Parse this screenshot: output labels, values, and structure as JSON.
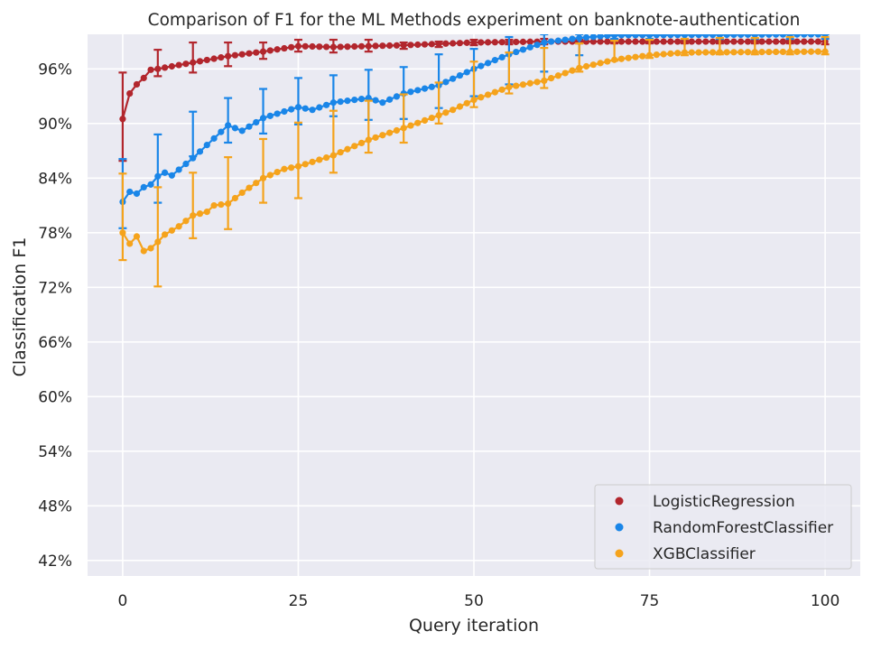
{
  "chart_data": {
    "type": "line",
    "title": "Comparison of F1 for the ML Methods experiment on banknote-authentication",
    "xlabel": "Query iteration",
    "ylabel": "Classification F1",
    "xlim": [
      -5,
      105
    ],
    "ylim": [
      40.3,
      99.8
    ],
    "xticks": [
      0,
      25,
      50,
      75,
      100
    ],
    "xtick_labels": [
      "0",
      "25",
      "50",
      "75",
      "100"
    ],
    "yticks": [
      42,
      48,
      54,
      60,
      66,
      72,
      78,
      84,
      90,
      96
    ],
    "ytick_labels": [
      "42%",
      "48%",
      "54%",
      "60%",
      "66%",
      "72%",
      "78%",
      "84%",
      "90%",
      "96%"
    ],
    "grid": true,
    "legend_position": "bottom-right",
    "error_bar_every": 5,
    "series": [
      {
        "name": "LogisticRegression",
        "color": "#b2262d",
        "knots": [
          [
            0,
            90.5
          ],
          [
            1,
            93.3
          ],
          [
            2,
            94.3
          ],
          [
            3,
            95.0
          ],
          [
            4,
            95.9
          ],
          [
            5,
            96.0
          ],
          [
            10,
            96.7
          ],
          [
            15,
            97.4
          ],
          [
            20,
            97.9
          ],
          [
            25,
            98.5
          ],
          [
            30,
            98.4
          ],
          [
            40,
            98.6
          ],
          [
            50,
            98.9
          ],
          [
            60,
            99.0
          ],
          [
            100,
            99.0
          ]
        ],
        "error_bars": [
          [
            0,
            85.9,
            95.6
          ],
          [
            5,
            95.2,
            98.1
          ],
          [
            10,
            95.6,
            98.9
          ],
          [
            15,
            96.3,
            98.9
          ],
          [
            20,
            97.1,
            98.9
          ],
          [
            25,
            97.9,
            99.2
          ],
          [
            30,
            97.8,
            99.2
          ],
          [
            35,
            97.9,
            99.2
          ],
          [
            40,
            98.2,
            98.9
          ],
          [
            45,
            98.4,
            99.0
          ],
          [
            50,
            98.6,
            99.2
          ],
          [
            55,
            98.7,
            99.2
          ],
          [
            60,
            98.7,
            99.3
          ],
          [
            65,
            98.8,
            99.2
          ],
          [
            70,
            98.8,
            99.2
          ],
          [
            75,
            98.8,
            99.2
          ],
          [
            80,
            98.8,
            99.2
          ],
          [
            85,
            98.8,
            99.2
          ],
          [
            90,
            98.8,
            99.2
          ],
          [
            95,
            98.8,
            99.2
          ],
          [
            100,
            98.7,
            99.3
          ]
        ]
      },
      {
        "name": "RandomForestClassifier",
        "color": "#1a86e8",
        "knots": [
          [
            0,
            81.4
          ],
          [
            1,
            82.5
          ],
          [
            2,
            82.3
          ],
          [
            3,
            83.0
          ],
          [
            4,
            83.3
          ],
          [
            5,
            84.2
          ],
          [
            6,
            84.6
          ],
          [
            7,
            84.3
          ],
          [
            10,
            86.2
          ],
          [
            15,
            89.8
          ],
          [
            17,
            89.2
          ],
          [
            20,
            90.6
          ],
          [
            25,
            91.8
          ],
          [
            27,
            91.5
          ],
          [
            30,
            92.3
          ],
          [
            35,
            92.8
          ],
          [
            37,
            92.3
          ],
          [
            40,
            93.3
          ],
          [
            45,
            94.2
          ],
          [
            50,
            96.0
          ],
          [
            55,
            97.6
          ],
          [
            60,
            98.9
          ],
          [
            65,
            99.4
          ],
          [
            70,
            99.7
          ],
          [
            100,
            99.8
          ]
        ],
        "error_bars": [
          [
            0,
            78.5,
            86.1
          ],
          [
            5,
            81.3,
            88.8
          ],
          [
            10,
            86.4,
            91.3
          ],
          [
            15,
            87.9,
            92.8
          ],
          [
            20,
            88.9,
            93.8
          ],
          [
            25,
            89.9,
            95.0
          ],
          [
            30,
            90.8,
            95.3
          ],
          [
            35,
            90.4,
            95.9
          ],
          [
            40,
            90.5,
            96.2
          ],
          [
            45,
            91.7,
            97.6
          ],
          [
            50,
            93.0,
            98.2
          ],
          [
            55,
            94.3,
            99.5
          ],
          [
            60,
            95.7,
            99.8
          ],
          [
            65,
            97.5,
            99.8
          ],
          [
            70,
            99.3,
            99.8
          ],
          [
            75,
            99.3,
            99.8
          ],
          [
            80,
            99.3,
            99.8
          ],
          [
            85,
            99.3,
            99.8
          ],
          [
            90,
            99.3,
            99.8
          ],
          [
            95,
            99.3,
            99.8
          ],
          [
            100,
            99.3,
            99.8
          ]
        ]
      },
      {
        "name": "XGBClassifier",
        "color": "#f5a31c",
        "knots": [
          [
            0,
            78.0
          ],
          [
            1,
            76.8
          ],
          [
            2,
            77.6
          ],
          [
            3,
            76.0
          ],
          [
            4,
            76.3
          ],
          [
            5,
            77.0
          ],
          [
            6,
            77.8
          ],
          [
            8,
            78.7
          ],
          [
            10,
            79.9
          ],
          [
            12,
            80.3
          ],
          [
            13,
            81.0
          ],
          [
            15,
            81.2
          ],
          [
            17,
            82.4
          ],
          [
            20,
            84.0
          ],
          [
            23,
            85.0
          ],
          [
            25,
            85.3
          ],
          [
            30,
            86.5
          ],
          [
            35,
            88.2
          ],
          [
            40,
            89.5
          ],
          [
            45,
            90.9
          ],
          [
            47,
            91.5
          ],
          [
            50,
            92.6
          ],
          [
            55,
            94.0
          ],
          [
            60,
            94.7
          ],
          [
            65,
            96.1
          ],
          [
            70,
            97.0
          ],
          [
            75,
            97.5
          ],
          [
            80,
            97.8
          ],
          [
            100,
            97.9
          ]
        ],
        "error_bars": [
          [
            0,
            75.0,
            84.5
          ],
          [
            5,
            72.1,
            83.0
          ],
          [
            10,
            77.4,
            84.6
          ],
          [
            15,
            78.4,
            86.3
          ],
          [
            20,
            81.3,
            88.3
          ],
          [
            25,
            81.8,
            90.1
          ],
          [
            30,
            84.6,
            91.4
          ],
          [
            35,
            86.8,
            92.5
          ],
          [
            40,
            87.9,
            93.2
          ],
          [
            45,
            90.0,
            94.5
          ],
          [
            50,
            91.8,
            96.8
          ],
          [
            55,
            93.3,
            97.8
          ],
          [
            60,
            93.9,
            98.3
          ],
          [
            65,
            95.7,
            98.8
          ],
          [
            70,
            96.9,
            99.1
          ],
          [
            75,
            97.2,
            99.2
          ],
          [
            80,
            97.5,
            99.3
          ],
          [
            85,
            97.6,
            99.4
          ],
          [
            90,
            97.6,
            99.4
          ],
          [
            95,
            97.6,
            99.5
          ],
          [
            100,
            97.6,
            99.5
          ]
        ]
      }
    ]
  }
}
